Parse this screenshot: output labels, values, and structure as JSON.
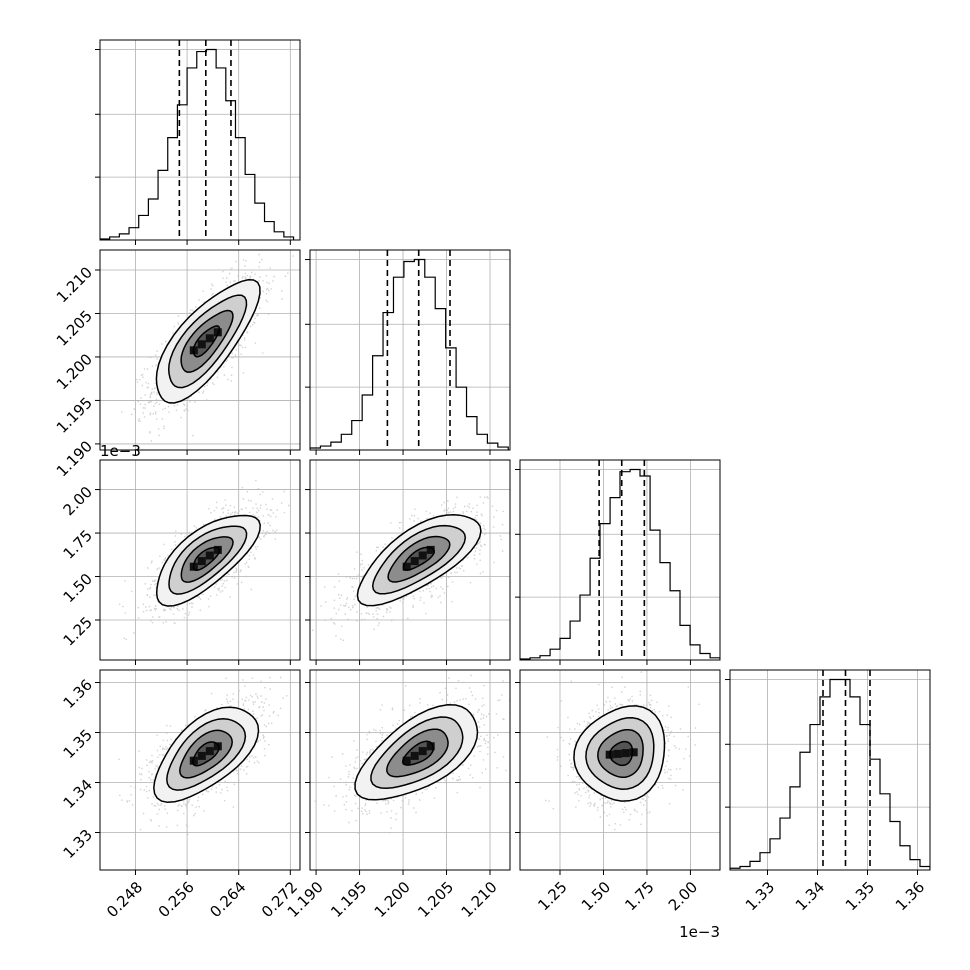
{
  "chart_data": {
    "type": "corner",
    "grid": true,
    "parameters": [
      {
        "range": [
          0.2425,
          0.2735
        ],
        "ticks": [
          0.248,
          0.256,
          0.264,
          0.272
        ],
        "tick_labels": [
          "0.248",
          "0.256",
          "0.264",
          "0.272"
        ],
        "scale_label": "",
        "quantiles": [
          0.2548,
          0.2589,
          0.2628
        ],
        "mean": 0.2589,
        "sd": 0.004,
        "hist_bins": [
          0.2425,
          0.244,
          0.2455,
          0.247,
          0.2485,
          0.25,
          0.2515,
          0.253,
          0.2545,
          0.256,
          0.2575,
          0.259,
          0.2605,
          0.262,
          0.2635,
          0.265,
          0.2665,
          0.268,
          0.2695,
          0.271,
          0.2725
        ],
        "hist_values": [
          0.5,
          1.5,
          3,
          6,
          12,
          20,
          34,
          50,
          66,
          84,
          92,
          93,
          84,
          68,
          50,
          32,
          18,
          9,
          4,
          1.5
        ]
      },
      {
        "range": [
          1.1893,
          1.2123
        ],
        "ticks": [
          1.19,
          1.195,
          1.2,
          1.205,
          1.21
        ],
        "tick_labels": [
          "1.190",
          "1.195",
          "1.200",
          "1.205",
          "1.210"
        ],
        "scale_label": "",
        "quantiles": [
          1.1982,
          1.2018,
          1.2054
        ],
        "mean": 1.2018,
        "sd": 0.0035,
        "hist_bins": [
          1.1893,
          1.1905,
          1.1917,
          1.1929,
          1.1941,
          1.1953,
          1.1965,
          1.1977,
          1.1989,
          1.2001,
          1.2013,
          1.2025,
          1.2037,
          1.2049,
          1.2061,
          1.2073,
          1.2085,
          1.2097,
          1.2109,
          1.2121
        ],
        "hist_values": [
          1,
          2,
          4,
          8,
          15,
          28,
          48,
          70,
          88,
          96,
          97,
          88,
          72,
          52,
          32,
          17,
          8,
          3.5,
          1.5
        ]
      },
      {
        "range": [
          1.02,
          2.17
        ],
        "ticks": [
          1.25,
          1.5,
          1.75,
          2.0
        ],
        "tick_labels": [
          "1.25",
          "1.50",
          "1.75",
          "2.00"
        ],
        "scale_label": "1e−3",
        "quantiles": [
          1.475,
          1.605,
          1.735
        ],
        "mean": 1.605,
        "sd": 0.13,
        "hist_bins": [
          1.02,
          1.078,
          1.135,
          1.193,
          1.25,
          1.308,
          1.365,
          1.423,
          1.48,
          1.538,
          1.595,
          1.653,
          1.71,
          1.768,
          1.825,
          1.883,
          1.94,
          1.998,
          2.055,
          2.113,
          2.17
        ],
        "hist_values": [
          0.5,
          1,
          2,
          5,
          10,
          18,
          30,
          47,
          63,
          75,
          87,
          88,
          85,
          60,
          45,
          32,
          16,
          7,
          3,
          1
        ]
      },
      {
        "range": [
          1.3225,
          1.3625
        ],
        "ticks": [
          1.33,
          1.34,
          1.35,
          1.36
        ],
        "tick_labels": [
          "1.33",
          "1.34",
          "1.35",
          "1.36"
        ],
        "scale_label": "",
        "quantiles": [
          1.3411,
          1.3456,
          1.3505
        ],
        "mean": 1.3458,
        "sd": 0.0047,
        "hist_bins": [
          1.3225,
          1.3245,
          1.3265,
          1.3285,
          1.3305,
          1.3325,
          1.3345,
          1.3365,
          1.3385,
          1.3405,
          1.3425,
          1.3445,
          1.3465,
          1.3485,
          1.3505,
          1.3525,
          1.3545,
          1.3565,
          1.3585,
          1.3605,
          1.3625
        ],
        "hist_values": [
          0.5,
          1,
          2.5,
          5,
          9,
          15,
          24,
          34,
          42,
          50,
          55,
          55,
          50,
          42,
          32,
          22,
          14,
          7,
          3,
          1
        ]
      }
    ],
    "correlations": [
      [
        1,
        0.75,
        0.7,
        0.6
      ],
      [
        0.75,
        1,
        0.7,
        0.6
      ],
      [
        0.7,
        0.7,
        1,
        0.1
      ],
      [
        0.6,
        0.6,
        0.1,
        1
      ]
    ],
    "contour_sigma_levels": [
      0.5,
      1.0,
      1.5,
      2.0
    ],
    "scatter_points_per_panel": 1500,
    "colors": {
      "scatter": "#bfbfbf",
      "line": "#000000",
      "grid": "#b0b0b0"
    }
  }
}
